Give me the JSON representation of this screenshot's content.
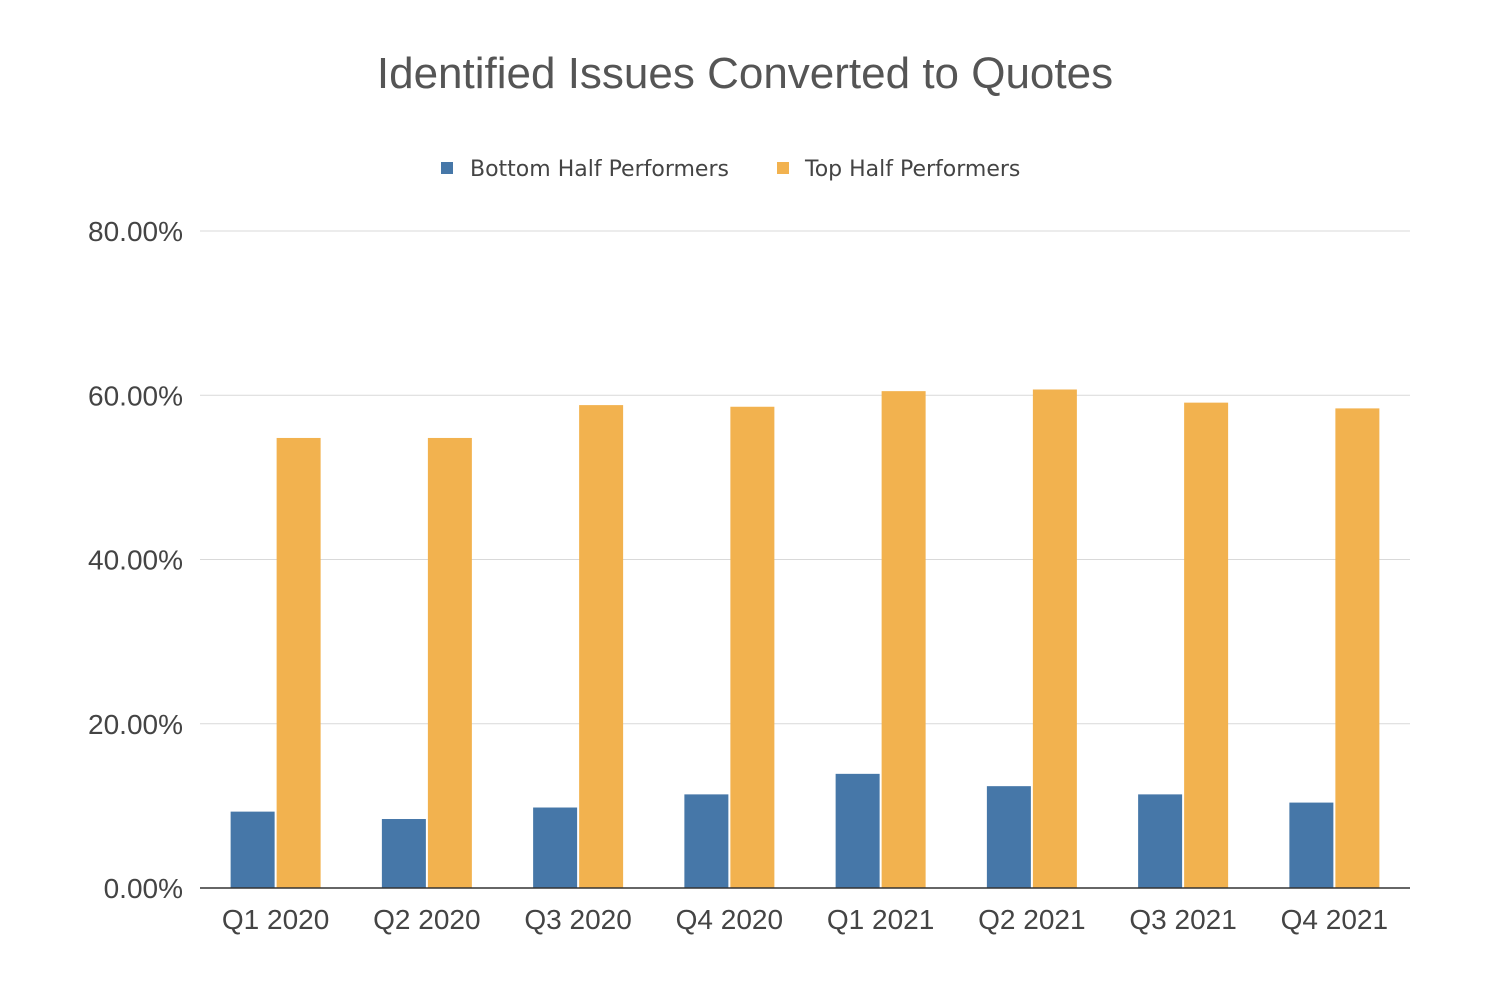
{
  "chart_data": {
    "type": "bar",
    "title": "Identified Issues Converted to Quotes",
    "xlabel": "",
    "ylabel": "",
    "categories": [
      "Q1 2020",
      "Q2 2020",
      "Q3 2020",
      "Q4 2020",
      "Q1 2021",
      "Q2 2021",
      "Q3 2021",
      "Q4 2021"
    ],
    "series": [
      {
        "name": "Bottom Half Performers",
        "color": "#4677a8",
        "values": [
          9.3,
          8.4,
          9.8,
          11.4,
          13.9,
          12.4,
          11.4,
          10.4
        ]
      },
      {
        "name": "Top Half Performers",
        "color": "#f2b24f",
        "values": [
          54.8,
          54.8,
          58.8,
          58.6,
          60.5,
          60.7,
          59.1,
          58.4
        ]
      }
    ],
    "ylim": [
      0,
      80
    ],
    "yticks": [
      "0.00%",
      "20.00%",
      "40.00%",
      "60.00%",
      "80.00%"
    ],
    "ytick_values": [
      0,
      20,
      40,
      60,
      80
    ],
    "grid": true,
    "legend_position": "top-center"
  }
}
